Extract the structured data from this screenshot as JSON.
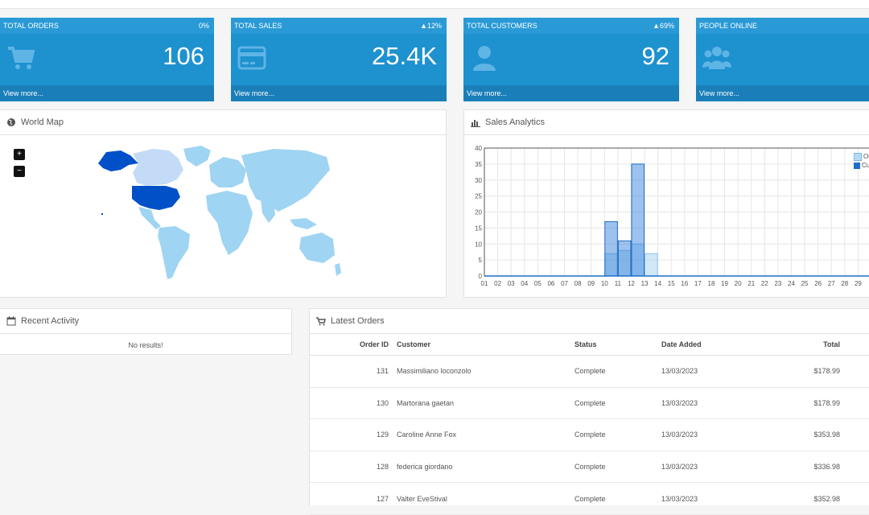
{
  "tiles": [
    {
      "title": "TOTAL ORDERS",
      "change": "0%",
      "value": "106",
      "footer": "View more...",
      "icon": "shopping-cart-icon"
    },
    {
      "title": "TOTAL SALES",
      "change": "▲12%",
      "value": "25.4K",
      "footer": "View more...",
      "icon": "credit-card-icon"
    },
    {
      "title": "TOTAL CUSTOMERS",
      "change": "▲69%",
      "value": "92",
      "footer": "View more...",
      "icon": "user-icon"
    },
    {
      "title": "PEOPLE ONLINE",
      "change": "",
      "value": "",
      "footer": "View more...",
      "icon": "users-icon"
    }
  ],
  "world_map": {
    "title": "World Map",
    "zoom_in": "+",
    "zoom_out": "−"
  },
  "sales_analytics": {
    "title": "Sales Analytics"
  },
  "chart_data": {
    "type": "bar",
    "categories": [
      "01",
      "02",
      "03",
      "04",
      "05",
      "06",
      "07",
      "08",
      "09",
      "10",
      "11",
      "12",
      "13",
      "14",
      "15",
      "16",
      "17",
      "18",
      "19",
      "20",
      "21",
      "22",
      "23",
      "24",
      "25",
      "26",
      "27",
      "28",
      "29"
    ],
    "series": [
      {
        "name": "Or",
        "values": [
          0,
          0,
          0,
          0,
          0,
          0,
          0,
          0,
          0,
          7,
          8,
          10,
          7,
          0,
          0,
          0,
          0,
          0,
          0,
          0,
          0,
          0,
          0,
          0,
          0,
          0,
          0,
          0,
          0
        ]
      },
      {
        "name": "Cu",
        "values": [
          0,
          0,
          0,
          0,
          0,
          0,
          0,
          0,
          0,
          17,
          11,
          35,
          0,
          0,
          0,
          0,
          0,
          0,
          0,
          0,
          0,
          0,
          0,
          0,
          0,
          0,
          0,
          0,
          0
        ]
      }
    ],
    "yticks": [
      "0",
      "5",
      "10",
      "15",
      "20",
      "25",
      "30",
      "35",
      "40"
    ],
    "ylim": [
      0,
      40
    ],
    "grid": true,
    "legend": "top-right",
    "colors": {
      "series1": "#b5dbf3",
      "series2": "#1f6fc6"
    }
  },
  "recent_activity": {
    "title": "Recent Activity",
    "empty_text": "No results!"
  },
  "latest_orders": {
    "title": "Latest Orders",
    "columns": [
      "Order ID",
      "Customer",
      "Status",
      "Date Added",
      "Total"
    ],
    "rows": [
      {
        "id": "131",
        "customer": "Massimiliano loconzolo",
        "status": "Complete",
        "date": "13/03/2023",
        "total": "$178.99"
      },
      {
        "id": "130",
        "customer": "Martorana gaetan",
        "status": "Complete",
        "date": "13/03/2023",
        "total": "$178.99"
      },
      {
        "id": "129",
        "customer": "Caroline Anne Fox",
        "status": "Complete",
        "date": "13/03/2023",
        "total": "$353.98"
      },
      {
        "id": "128",
        "customer": "federica giordano",
        "status": "Complete",
        "date": "13/03/2023",
        "total": "$336.98"
      },
      {
        "id": "127",
        "customer": "Valter EveStival",
        "status": "Complete",
        "date": "13/03/2023",
        "total": "$352.98"
      }
    ]
  },
  "colors": {
    "tile": "#1e91cf",
    "tile_header": "#2a9ad6",
    "tile_footer": "#1a7fb9",
    "map_highlight": "#0050c8",
    "map_land": "#9fd4f2"
  }
}
